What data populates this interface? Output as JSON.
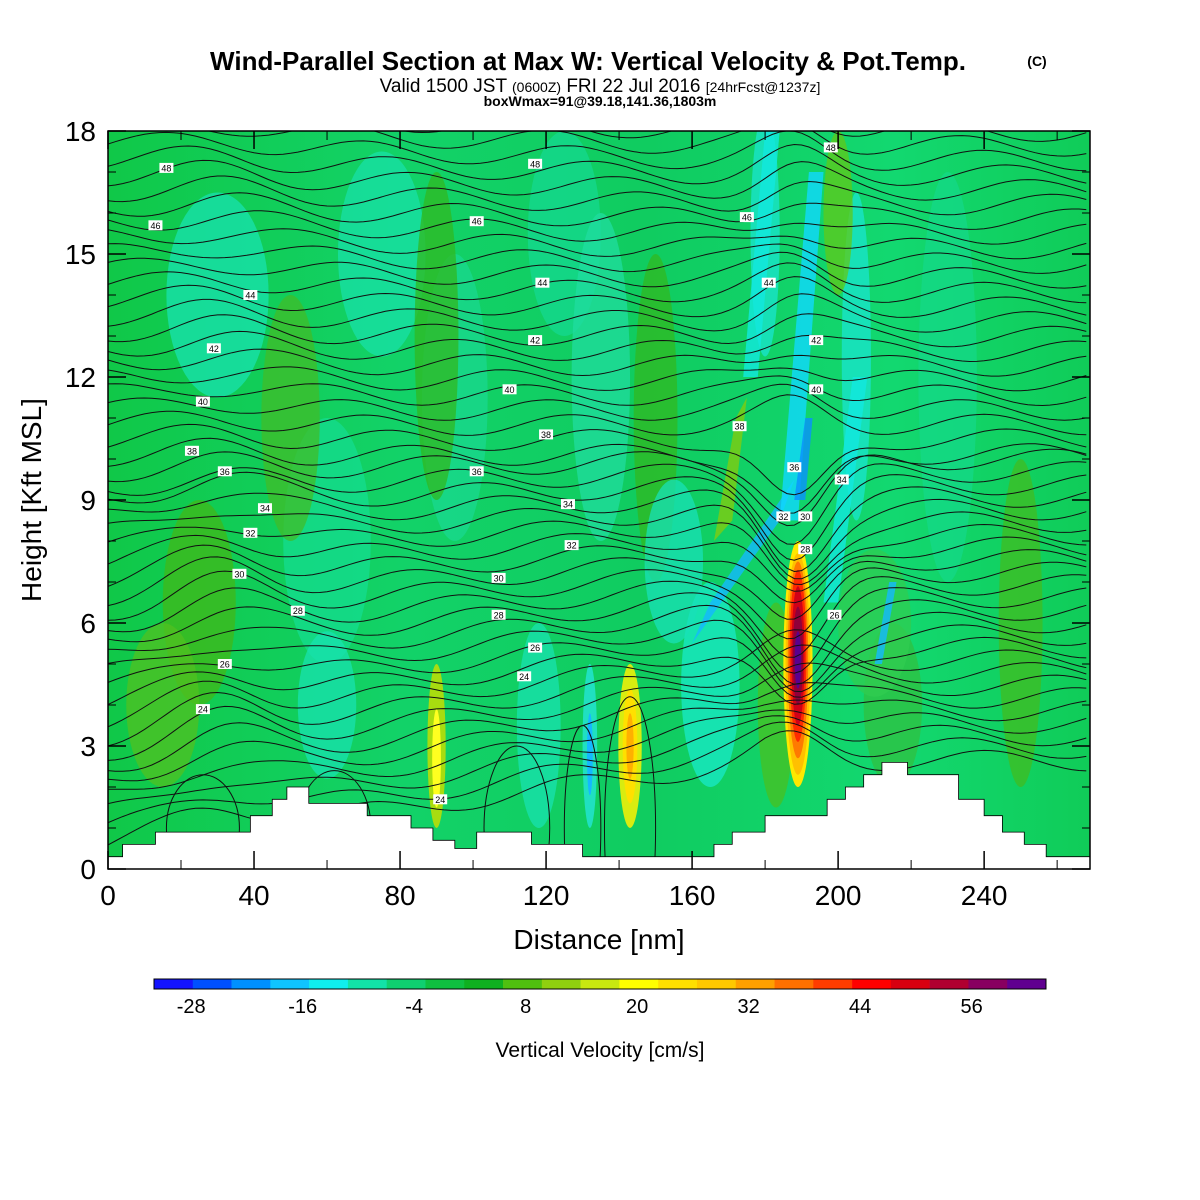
{
  "title": {
    "main": "Wind-Parallel Section at Max W: Vertical Velocity & Pot.Temp.",
    "copyright": "(C)",
    "valid_prefix": "Valid 1500 JST",
    "valid_z": "(0600Z)",
    "valid_date": "FRI 22 Jul 2016",
    "forecast": "[24hrFcst@1237z]",
    "box_info": "boxWmax=91@39.18,141.36,1803m"
  },
  "chart_data": {
    "type": "heatmap",
    "xlabel": "Distance [nm]",
    "ylabel": "Height [Kft MSL]",
    "xlim": [
      0,
      269
    ],
    "ylim": [
      0,
      18
    ],
    "x_ticks": [
      0,
      40,
      80,
      120,
      160,
      200,
      240
    ],
    "y_ticks": [
      0,
      3,
      6,
      9,
      12,
      15,
      18
    ],
    "colorbar": {
      "label": "Vertical Velocity [cm/s]",
      "tick_values": [
        -28,
        -16,
        -4,
        8,
        20,
        32,
        44,
        56
      ],
      "tick_labels": [
        "-28",
        "-16",
        "-4",
        "8",
        "20",
        "32",
        "44",
        "56"
      ],
      "min": -32,
      "max": 64,
      "step": 4,
      "colors": [
        "#1414ff",
        "#0050ff",
        "#0090ff",
        "#10c4ff",
        "#10eeee",
        "#12e2a8",
        "#10d070",
        "#10c040",
        "#10b020",
        "#50c010",
        "#90d010",
        "#c8e810",
        "#ffff00",
        "#ffe000",
        "#ffc800",
        "#ffa000",
        "#ff7000",
        "#ff3c00",
        "#ff0000",
        "#d80010",
        "#b00030",
        "#880060",
        "#600090"
      ]
    },
    "contour_labels": [
      {
        "x": 16,
        "y": 17.1,
        "text": "48"
      },
      {
        "x": 117,
        "y": 17.2,
        "text": "48"
      },
      {
        "x": 198,
        "y": 17.6,
        "text": "48"
      },
      {
        "x": 13,
        "y": 15.7,
        "text": "46"
      },
      {
        "x": 101,
        "y": 15.8,
        "text": "46"
      },
      {
        "x": 175,
        "y": 15.9,
        "text": "46"
      },
      {
        "x": 39,
        "y": 14.0,
        "text": "44"
      },
      {
        "x": 119,
        "y": 14.3,
        "text": "44"
      },
      {
        "x": 181,
        "y": 14.3,
        "text": "44"
      },
      {
        "x": 29,
        "y": 12.7,
        "text": "42"
      },
      {
        "x": 117,
        "y": 12.9,
        "text": "42"
      },
      {
        "x": 194,
        "y": 12.9,
        "text": "42"
      },
      {
        "x": 26,
        "y": 11.4,
        "text": "40"
      },
      {
        "x": 110,
        "y": 11.7,
        "text": "40"
      },
      {
        "x": 194,
        "y": 11.7,
        "text": "40"
      },
      {
        "x": 23,
        "y": 10.2,
        "text": "38"
      },
      {
        "x": 120,
        "y": 10.6,
        "text": "38"
      },
      {
        "x": 173,
        "y": 10.8,
        "text": "38"
      },
      {
        "x": 32,
        "y": 9.7,
        "text": "36"
      },
      {
        "x": 101,
        "y": 9.7,
        "text": "36"
      },
      {
        "x": 188,
        "y": 9.8,
        "text": "36"
      },
      {
        "x": 43,
        "y": 8.8,
        "text": "34"
      },
      {
        "x": 126,
        "y": 8.9,
        "text": "34"
      },
      {
        "x": 201,
        "y": 9.5,
        "text": "34"
      },
      {
        "x": 39,
        "y": 8.2,
        "text": "32"
      },
      {
        "x": 127,
        "y": 7.9,
        "text": "32"
      },
      {
        "x": 185,
        "y": 8.6,
        "text": "32"
      },
      {
        "x": 36,
        "y": 7.2,
        "text": "30"
      },
      {
        "x": 107,
        "y": 7.1,
        "text": "30"
      },
      {
        "x": 191,
        "y": 8.6,
        "text": "30"
      },
      {
        "x": 52,
        "y": 6.3,
        "text": "28"
      },
      {
        "x": 107,
        "y": 6.2,
        "text": "28"
      },
      {
        "x": 191,
        "y": 7.8,
        "text": "28"
      },
      {
        "x": 32,
        "y": 5.0,
        "text": "26"
      },
      {
        "x": 117,
        "y": 5.4,
        "text": "26"
      },
      {
        "x": 199,
        "y": 6.2,
        "text": "26"
      },
      {
        "x": 26,
        "y": 3.9,
        "text": "24"
      },
      {
        "x": 114,
        "y": 4.7,
        "text": "24"
      },
      {
        "x": 91,
        "y": 1.7,
        "text": "24"
      }
    ],
    "terrain_kft": [
      [
        0,
        0.3
      ],
      [
        4,
        0.6
      ],
      [
        13,
        0.9
      ],
      [
        39,
        1.3
      ],
      [
        45,
        1.7
      ],
      [
        49,
        2.0
      ],
      [
        55,
        1.6
      ],
      [
        71,
        1.3
      ],
      [
        83,
        1.0
      ],
      [
        89,
        0.7
      ],
      [
        95,
        0.5
      ],
      [
        101,
        0.9
      ],
      [
        116,
        0.6
      ],
      [
        130,
        0.3
      ],
      [
        160,
        0.3
      ],
      [
        166,
        0.6
      ],
      [
        171,
        0.9
      ],
      [
        180,
        1.3
      ],
      [
        197,
        1.7
      ],
      [
        202,
        2.0
      ],
      [
        207,
        2.3
      ],
      [
        212,
        2.6
      ],
      [
        219,
        2.3
      ],
      [
        233,
        1.7
      ],
      [
        240,
        1.3
      ],
      [
        245,
        0.9
      ],
      [
        251,
        0.6
      ],
      [
        257,
        0.3
      ],
      [
        269,
        0.3
      ]
    ]
  }
}
